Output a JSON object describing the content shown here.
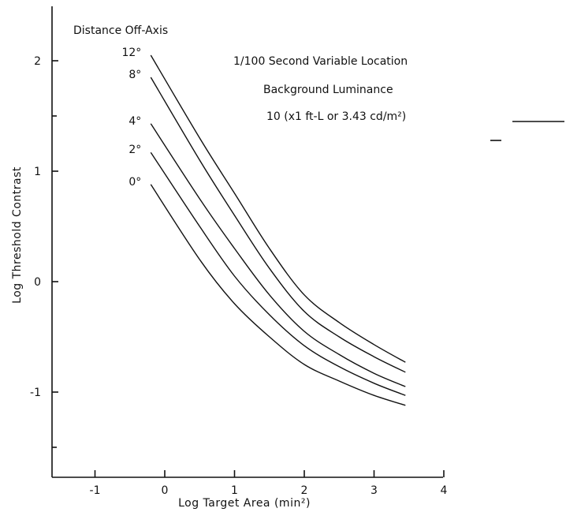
{
  "chart_data": {
    "type": "line",
    "xlabel": "Log Target Area (min²)",
    "ylabel": "Log Threshold Contrast",
    "xlim": [
      -1.6,
      4.0
    ],
    "ylim": [
      -1.7,
      2.4
    ],
    "xticks": [
      -1,
      0,
      1,
      2,
      3,
      4
    ],
    "xtick_labels": [
      "-1",
      "0",
      "1",
      "2",
      "3",
      "4"
    ],
    "yticks": [
      -1,
      0,
      1,
      2
    ],
    "ytick_labels": [
      "-1",
      "0",
      "1",
      "2"
    ],
    "grid": false,
    "annotations": {
      "legend_title": "Distance Off-Axis",
      "condition_line1": "1/100 Second Variable Location",
      "condition_line2": "Background Luminance",
      "condition_line3": "10 (x1 ft-L or 3.43 cd/m²)"
    },
    "series": [
      {
        "name": "12°",
        "x": [
          -0.2,
          0.5,
          1.0,
          1.5,
          2.0,
          2.5,
          3.0,
          3.45
        ],
        "y": [
          2.05,
          1.3,
          0.8,
          0.3,
          -0.12,
          -0.37,
          -0.57,
          -0.73
        ]
      },
      {
        "name": "8°",
        "x": [
          -0.2,
          0.5,
          1.0,
          1.5,
          2.0,
          2.5,
          3.0,
          3.45
        ],
        "y": [
          1.85,
          1.1,
          0.6,
          0.12,
          -0.27,
          -0.5,
          -0.68,
          -0.82
        ]
      },
      {
        "name": "4°",
        "x": [
          -0.2,
          0.5,
          1.0,
          1.5,
          2.0,
          2.5,
          3.0,
          3.45
        ],
        "y": [
          1.43,
          0.75,
          0.3,
          -0.12,
          -0.45,
          -0.66,
          -0.83,
          -0.95
        ]
      },
      {
        "name": "2°",
        "x": [
          -0.2,
          0.5,
          1.0,
          1.5,
          2.0,
          2.5,
          3.0,
          3.45
        ],
        "y": [
          1.17,
          0.5,
          0.05,
          -0.3,
          -0.58,
          -0.77,
          -0.92,
          -1.03
        ]
      },
      {
        "name": "0°",
        "x": [
          -0.2,
          0.5,
          1.0,
          1.5,
          2.0,
          2.5,
          3.0,
          3.45
        ],
        "y": [
          0.88,
          0.2,
          -0.2,
          -0.5,
          -0.75,
          -0.9,
          -1.03,
          -1.12
        ]
      }
    ]
  }
}
